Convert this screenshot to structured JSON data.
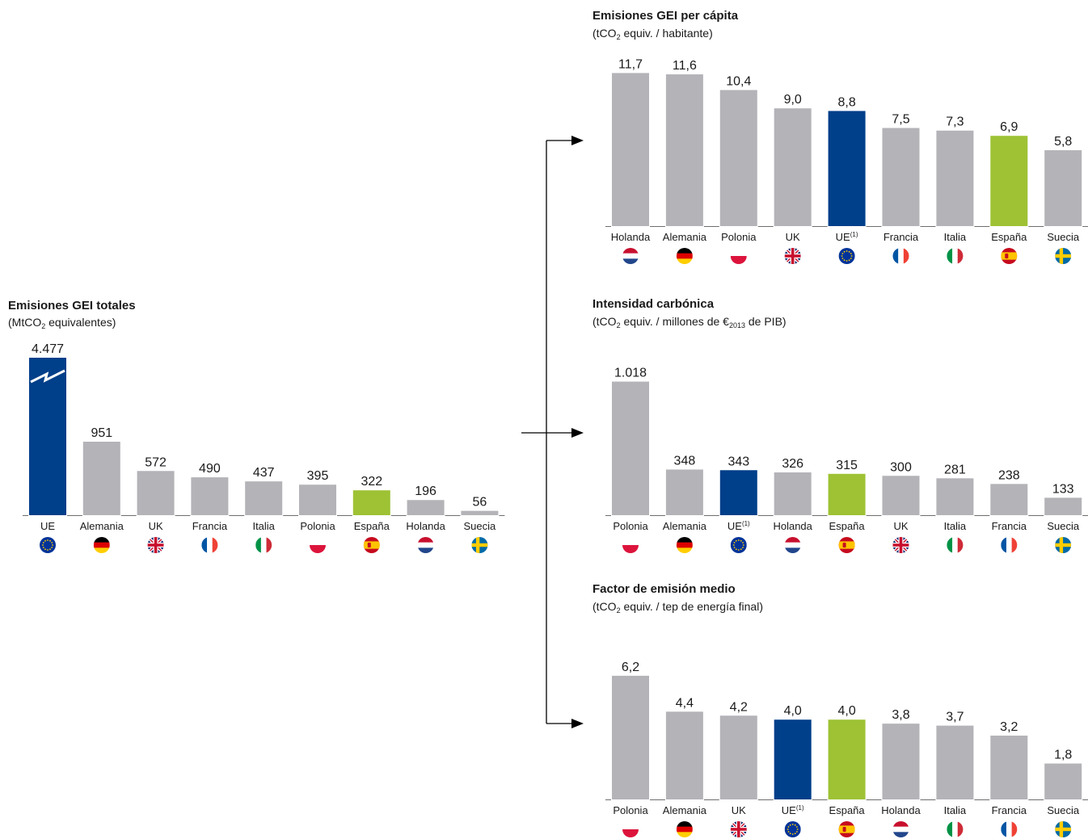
{
  "colors": {
    "bar_default": "#b3b3b8",
    "bar_eu": "#003f8a",
    "bar_spain": "#9ec234",
    "axis": "#6d6d6d",
    "connector": "#000000"
  },
  "chart_data": [
    {
      "id": "totales",
      "type": "bar",
      "title": "Emisiones GEI totales",
      "subtitle": {
        "pre": "(MtCO",
        "sub": "2",
        "post": " equivalentes)"
      },
      "categories": [
        "UE",
        "Alemania",
        "UK",
        "Francia",
        "Italia",
        "Polonia",
        "España",
        "Holanda",
        "Suecia"
      ],
      "category_sup": [
        "",
        "",
        "",
        "",
        "",
        "",
        "",
        "",
        ""
      ],
      "value_labels": [
        "4.477",
        "951",
        "572",
        "490",
        "437",
        "395",
        "322",
        "196",
        "56"
      ],
      "values": [
        4477,
        951,
        572,
        490,
        437,
        395,
        322,
        196,
        56
      ],
      "axis_break": [
        true,
        false,
        false,
        false,
        false,
        false,
        false,
        false,
        false
      ],
      "highlight": [
        "eu",
        "",
        "",
        "",
        "",
        "",
        "spain",
        "",
        ""
      ],
      "flags": [
        "eu-flag-icon",
        "germany-flag-icon",
        "uk-flag-icon",
        "france-flag-icon",
        "italy-flag-icon",
        "poland-flag-icon",
        "spain-flag-icon",
        "netherlands-flag-icon",
        "sweden-flag-icon"
      ]
    },
    {
      "id": "per_capita",
      "type": "bar",
      "title": "Emisiones GEI per cápita",
      "subtitle": {
        "pre": "(tCO",
        "sub": "2",
        "post": " equiv. / habitante)"
      },
      "categories": [
        "Holanda",
        "Alemania",
        "Polonia",
        "UK",
        "UE",
        "Francia",
        "Italia",
        "España",
        "Suecia"
      ],
      "category_sup": [
        "",
        "",
        "",
        "",
        "(1)",
        "",
        "",
        "",
        ""
      ],
      "value_labels": [
        "11,7",
        "11,6",
        "10,4",
        "9,0",
        "8,8",
        "7,5",
        "7,3",
        "6,9",
        "5,8"
      ],
      "values": [
        11.7,
        11.6,
        10.4,
        9.0,
        8.8,
        7.5,
        7.3,
        6.9,
        5.8
      ],
      "axis_break": [
        false,
        false,
        false,
        false,
        false,
        false,
        false,
        false,
        false
      ],
      "highlight": [
        "",
        "",
        "",
        "",
        "eu",
        "",
        "",
        "spain",
        ""
      ],
      "flags": [
        "netherlands-flag-icon",
        "germany-flag-icon",
        "poland-flag-icon",
        "uk-flag-icon",
        "eu-flag-icon",
        "france-flag-icon",
        "italy-flag-icon",
        "spain-flag-icon",
        "sweden-flag-icon"
      ]
    },
    {
      "id": "intensidad",
      "type": "bar",
      "title": "Intensidad carbónica",
      "subtitle": {
        "pre": "(tCO",
        "sub": "2",
        "post": " equiv. / millones de €",
        "sub2": "2013",
        "post2": " de PIB)"
      },
      "categories": [
        "Polonia",
        "Alemania",
        "UE",
        "Holanda",
        "España",
        "UK",
        "Italia",
        "Francia",
        "Suecia"
      ],
      "category_sup": [
        "",
        "",
        "(1)",
        "",
        "",
        "",
        "",
        "",
        ""
      ],
      "value_labels": [
        "1.018",
        "348",
        "343",
        "326",
        "315",
        "300",
        "281",
        "238",
        "133"
      ],
      "values": [
        1018,
        348,
        343,
        326,
        315,
        300,
        281,
        238,
        133
      ],
      "axis_break": [
        false,
        false,
        false,
        false,
        false,
        false,
        false,
        false,
        false
      ],
      "highlight": [
        "",
        "",
        "eu",
        "",
        "spain",
        "",
        "",
        "",
        ""
      ],
      "flags": [
        "poland-flag-icon",
        "germany-flag-icon",
        "eu-flag-icon",
        "netherlands-flag-icon",
        "spain-flag-icon",
        "uk-flag-icon",
        "italy-flag-icon",
        "france-flag-icon",
        "sweden-flag-icon"
      ]
    },
    {
      "id": "factor",
      "type": "bar",
      "title": "Factor de emisión medio",
      "subtitle": {
        "pre": "(tCO",
        "sub": "2",
        "post": " equiv. / tep de energía final)"
      },
      "categories": [
        "Polonia",
        "Alemania",
        "UK",
        "UE",
        "España",
        "Holanda",
        "Italia",
        "Francia",
        "Suecia"
      ],
      "category_sup": [
        "",
        "",
        "",
        "(1)",
        "",
        "",
        "",
        "",
        ""
      ],
      "value_labels": [
        "6,2",
        "4,4",
        "4,2",
        "4,0",
        "4,0",
        "3,8",
        "3,7",
        "3,2",
        "1,8"
      ],
      "values": [
        6.2,
        4.4,
        4.2,
        4.0,
        4.0,
        3.8,
        3.7,
        3.2,
        1.8
      ],
      "axis_break": [
        false,
        false,
        false,
        false,
        false,
        false,
        false,
        false,
        false
      ],
      "highlight": [
        "",
        "",
        "",
        "eu",
        "spain",
        "",
        "",
        "",
        ""
      ],
      "flags": [
        "poland-flag-icon",
        "germany-flag-icon",
        "uk-flag-icon",
        "eu-flag-icon",
        "spain-flag-icon",
        "netherlands-flag-icon",
        "italy-flag-icon",
        "france-flag-icon",
        "sweden-flag-icon"
      ]
    }
  ]
}
